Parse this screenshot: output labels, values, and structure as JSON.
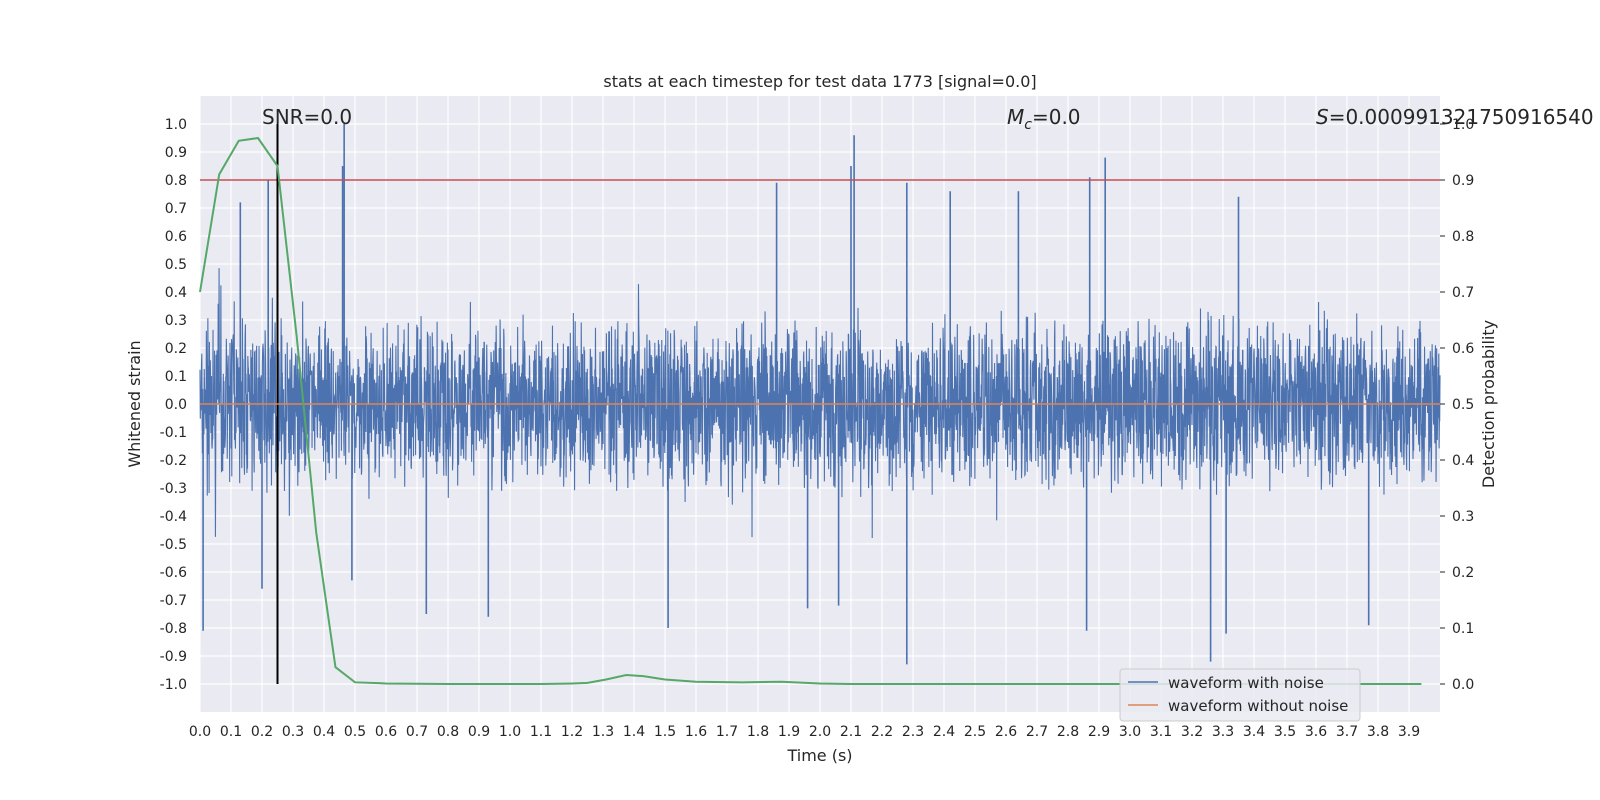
{
  "chart_data": {
    "type": "line",
    "title": "stats at each timestep for test data 1773 [signal=0.0]",
    "xlabel": "Time (s)",
    "ylabel": "Whitened strain",
    "y2label": "Detection probability",
    "xlim": [
      0.0,
      4.0
    ],
    "ylim": [
      -1.1,
      1.1
    ],
    "y2lim": [
      -0.05,
      1.05
    ],
    "xticks": [
      "0.0",
      "0.1",
      "0.2",
      "0.3",
      "0.4",
      "0.5",
      "0.6",
      "0.7",
      "0.8",
      "0.9",
      "1.0",
      "1.1",
      "1.2",
      "1.3",
      "1.4",
      "1.5",
      "1.6",
      "1.7",
      "1.8",
      "1.9",
      "2.0",
      "2.1",
      "2.2",
      "2.3",
      "2.4",
      "2.5",
      "2.6",
      "2.7",
      "2.8",
      "2.9",
      "3.0",
      "3.1",
      "3.2",
      "3.3",
      "3.4",
      "3.5",
      "3.6",
      "3.7",
      "3.8",
      "3.9"
    ],
    "yticks": [
      "1.0",
      "0.9",
      "0.8",
      "0.7",
      "0.6",
      "0.5",
      "0.4",
      "0.3",
      "0.2",
      "0.1",
      "0.0",
      "-0.1",
      "-0.2",
      "-0.3",
      "-0.4",
      "-0.5",
      "-0.6",
      "-0.7",
      "-0.8",
      "-0.9",
      "-1.0"
    ],
    "y2ticks": [
      "1.0",
      "0.9",
      "0.8",
      "0.7",
      "0.6",
      "0.5",
      "0.4",
      "0.3",
      "0.2",
      "0.1",
      "0.0"
    ],
    "annotations": {
      "snr": "SNR=0.0",
      "mc_symbol": "M",
      "mc_sub": "c",
      "mc_value": "=0.0",
      "s_symbol": "S",
      "s_value": "=0.000991321750916540"
    },
    "series": [
      {
        "name": "waveform with noise",
        "color": "#4c72b0",
        "axis": "left",
        "kind": "noise",
        "t_range": [
          0.0,
          4.0
        ],
        "envelope_typical": 0.35,
        "peaks": [
          {
            "t": 0.465,
            "v": 1.0
          },
          {
            "t": 0.46,
            "v": 0.85
          },
          {
            "t": 0.22,
            "v": 0.8
          },
          {
            "t": 2.11,
            "v": 0.96
          },
          {
            "t": 2.1,
            "v": 0.85
          },
          {
            "t": 2.92,
            "v": 0.88
          },
          {
            "t": 2.87,
            "v": 0.81
          },
          {
            "t": 2.28,
            "v": 0.79
          },
          {
            "t": 1.86,
            "v": 0.79
          },
          {
            "t": 2.42,
            "v": 0.76
          },
          {
            "t": 2.64,
            "v": 0.76
          },
          {
            "t": 3.35,
            "v": 0.74
          },
          {
            "t": 0.13,
            "v": 0.72
          },
          {
            "t": 0.01,
            "v": -0.81
          },
          {
            "t": 0.2,
            "v": -0.66
          },
          {
            "t": 2.28,
            "v": -0.93
          },
          {
            "t": 3.26,
            "v": -0.92
          },
          {
            "t": 3.31,
            "v": -0.82
          },
          {
            "t": 2.86,
            "v": -0.81
          },
          {
            "t": 3.77,
            "v": -0.79
          },
          {
            "t": 1.51,
            "v": -0.8
          },
          {
            "t": 0.93,
            "v": -0.76
          },
          {
            "t": 0.73,
            "v": -0.75
          },
          {
            "t": 1.96,
            "v": -0.73
          },
          {
            "t": 2.06,
            "v": -0.72
          },
          {
            "t": 0.49,
            "v": -0.63
          }
        ]
      },
      {
        "name": "waveform without noise",
        "color": "#dd8452",
        "axis": "left",
        "x": [
          0.0,
          4.0
        ],
        "y": [
          0.0,
          0.0
        ]
      },
      {
        "name": "detection probability",
        "color": "#55a868",
        "axis": "right",
        "x": [
          0.0,
          0.062,
          0.125,
          0.187,
          0.25,
          0.312,
          0.375,
          0.437,
          0.5,
          0.6,
          0.8,
          1.0,
          1.1,
          1.2,
          1.25,
          1.31,
          1.375,
          1.43,
          1.5,
          1.6,
          1.75,
          1.875,
          2.0,
          2.1,
          2.2,
          2.5,
          2.8,
          3.2,
          3.6,
          3.94
        ],
        "y": [
          0.7,
          0.91,
          0.97,
          0.975,
          0.925,
          0.62,
          0.27,
          0.03,
          0.003,
          0.001,
          0.0,
          0.0,
          0.0,
          0.001,
          0.002,
          0.008,
          0.016,
          0.014,
          0.008,
          0.004,
          0.003,
          0.004,
          0.001,
          0.0,
          0.0,
          0.0,
          0.0,
          0.0,
          0.0,
          0.0
        ]
      }
    ],
    "reference_lines": [
      {
        "name": "threshold",
        "axis": "right",
        "orientation": "horizontal",
        "value": 0.9,
        "color": "#c44e52"
      },
      {
        "name": "marker",
        "axis": "time",
        "orientation": "vertical",
        "value": 0.25,
        "color": "#000000"
      }
    ],
    "legend": {
      "placement": "lower-right",
      "entries": [
        {
          "label": "waveform with noise",
          "color": "#4c72b0"
        },
        {
          "label": "waveform without noise",
          "color": "#dd8452"
        }
      ]
    },
    "style": {
      "plot_bg": "#eaeaf2",
      "grid_color": "#ffffff",
      "text_color": "#262626"
    }
  }
}
